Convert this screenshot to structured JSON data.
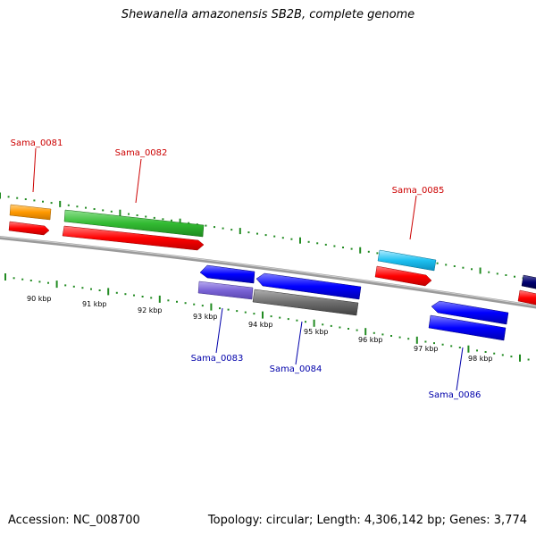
{
  "title": "Shewanella amazonensis SB2B, complete genome",
  "accession": "Accession: NC_008700",
  "summary": "Topology: circular; Length: 4,306,142 bp; Genes: 3,774",
  "colors": {
    "backbone": "#808080",
    "forward_label": "#cc0000",
    "reverse_label": "#0000aa",
    "tick": "#228b22",
    "kbp_tick": "#555555"
  },
  "kbp_labels": [
    "90 kbp",
    "91 kbp",
    "92 kbp",
    "93 kbp",
    "94 kbp",
    "95 kbp",
    "96 kbp",
    "97 kbp",
    "98 kbp"
  ],
  "genes": [
    {
      "id": "Sama_0081",
      "strand": "forward"
    },
    {
      "id": "Sama_0082",
      "strand": "forward"
    },
    {
      "id": "Sama_0083",
      "strand": "reverse"
    },
    {
      "id": "Sama_0084",
      "strand": "reverse"
    },
    {
      "id": "Sama_0085",
      "strand": "forward"
    },
    {
      "id": "Sama_0086",
      "strand": "reverse"
    }
  ]
}
